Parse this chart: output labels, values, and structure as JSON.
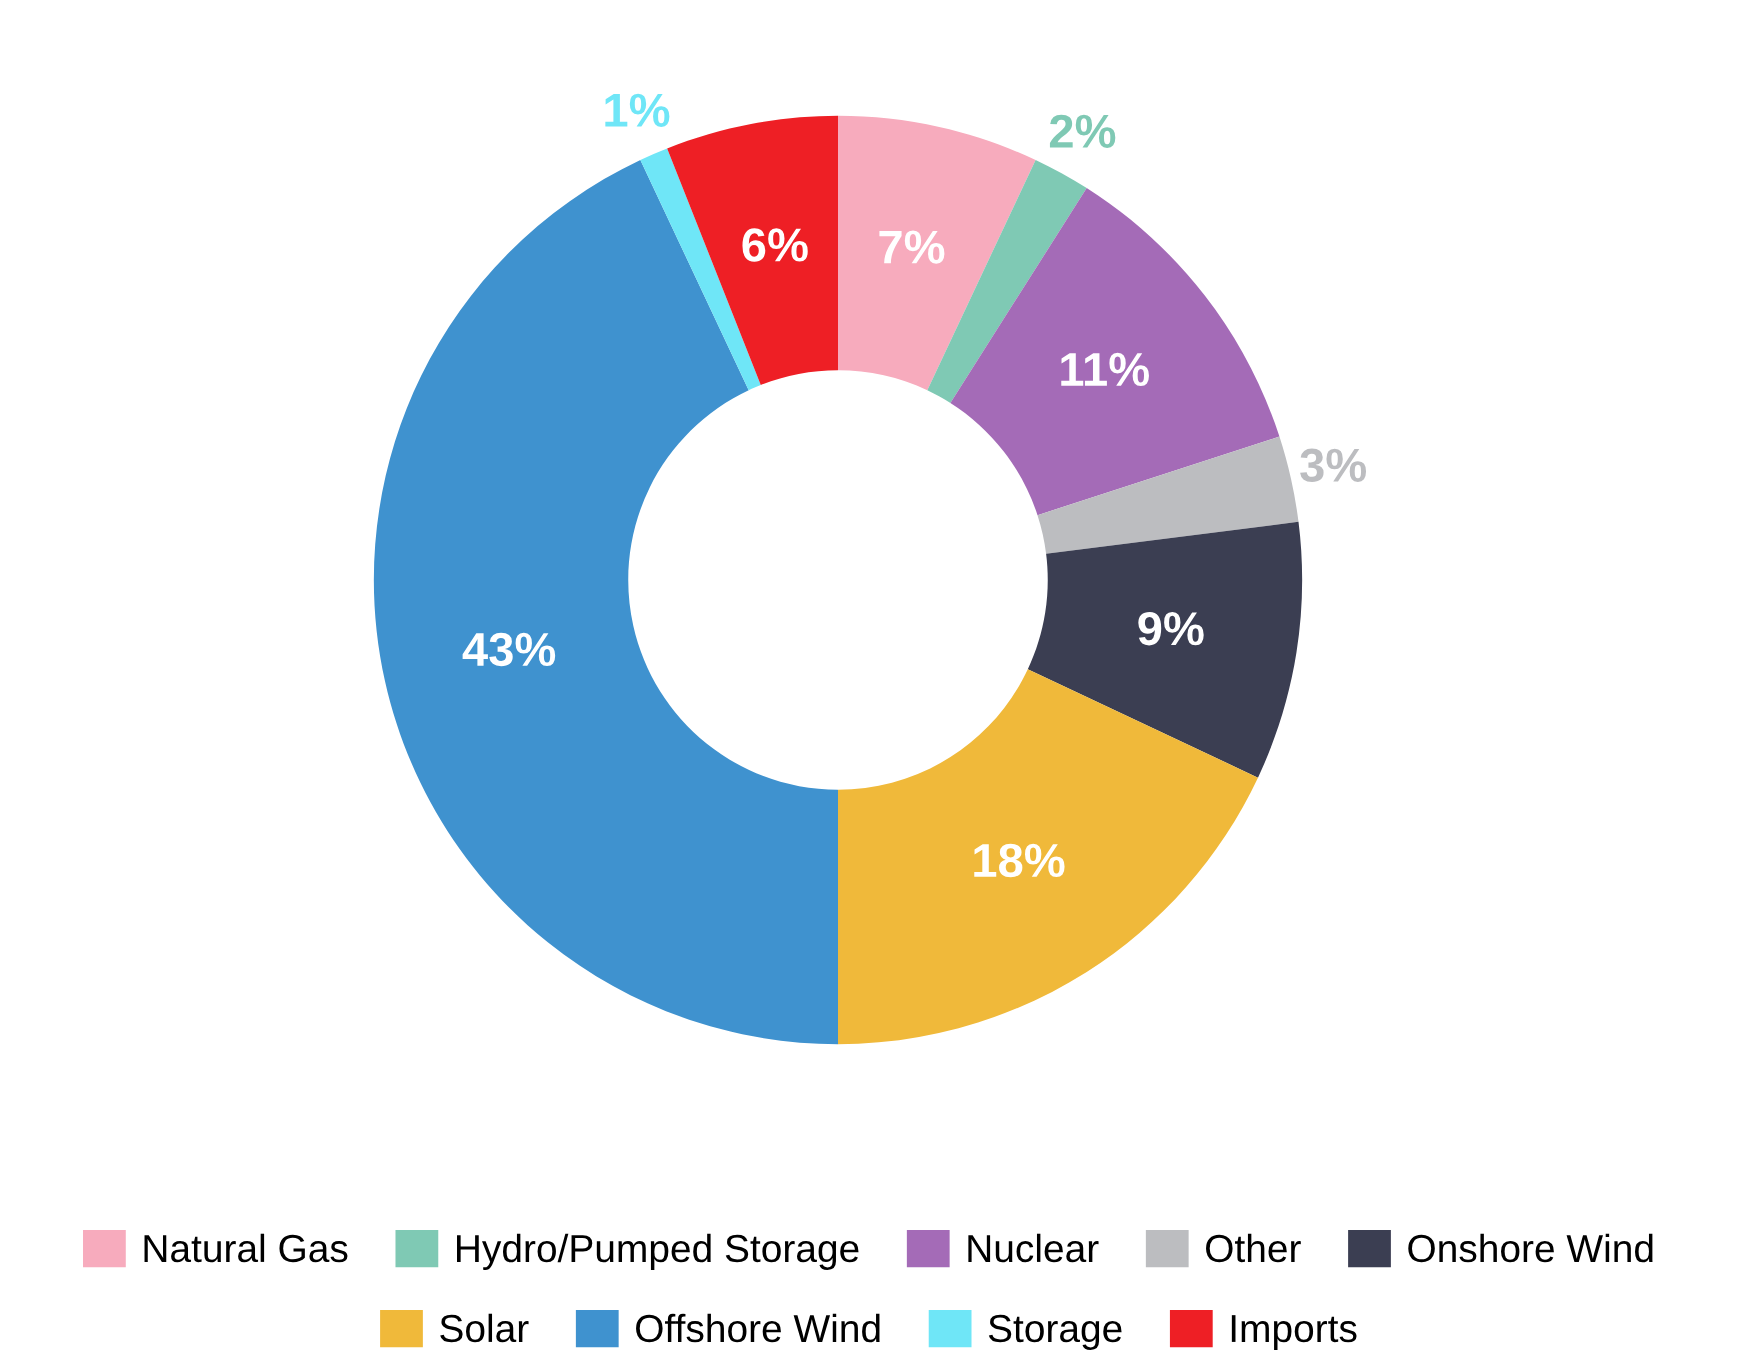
{
  "chart_data": {
    "type": "donut",
    "categories": [
      "Natural Gas",
      "Hydro/Pumped Storage",
      "Nuclear",
      "Other",
      "Onshore Wind",
      "Solar",
      "Offshore Wind",
      "Storage",
      "Imports"
    ],
    "values": [
      7,
      2,
      11,
      3,
      9,
      18,
      43,
      1,
      6
    ],
    "colors": [
      "#f7abbd",
      "#7fc9b4",
      "#a46bb7",
      "#bcbdc0",
      "#3b3e52",
      "#f0b93a",
      "#3f92cf",
      "#6fe6f7",
      "#ee1f25"
    ],
    "value_labels": [
      "7%",
      "2%",
      "11%",
      "3%",
      "9%",
      "18%",
      "43%",
      "1%",
      "6%"
    ],
    "legend": "bottom"
  }
}
